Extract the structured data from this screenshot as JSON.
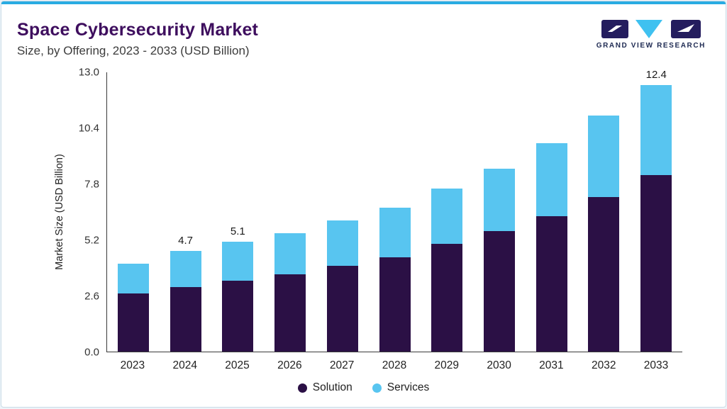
{
  "header": {
    "title": "Space Cybersecurity Market",
    "subtitle": "Size, by Offering, 2023 - 2033 (USD Billion)"
  },
  "logo": {
    "name": "GRAND VIEW RESEARCH"
  },
  "chart_data": {
    "type": "bar",
    "stacked": true,
    "title": "Space Cybersecurity Market Size, by Offering, 2023 - 2033 (USD Billion)",
    "ylabel": "Market Size (USD Billion)",
    "xlabel": "",
    "ylim": [
      0,
      13.0
    ],
    "ytick_labels": [
      "0.0",
      "2.6",
      "5.2",
      "7.8",
      "10.4",
      "13.0"
    ],
    "grid": false,
    "legend_position": "bottom",
    "categories": [
      "2023",
      "2024",
      "2025",
      "2026",
      "2027",
      "2028",
      "2029",
      "2030",
      "2031",
      "2032",
      "2033"
    ],
    "series": [
      {
        "name": "Solution",
        "color": "#2B1045",
        "values": [
          2.7,
          3.0,
          3.3,
          3.6,
          4.0,
          4.4,
          5.0,
          5.6,
          6.3,
          7.2,
          8.2
        ]
      },
      {
        "name": "Services",
        "color": "#58C5F0",
        "values": [
          1.4,
          1.7,
          1.8,
          1.9,
          2.1,
          2.3,
          2.6,
          2.9,
          3.4,
          3.8,
          4.2
        ]
      }
    ],
    "totals": [
      4.1,
      4.7,
      5.1,
      5.5,
      6.1,
      6.7,
      7.6,
      8.5,
      9.7,
      11.0,
      12.4
    ],
    "bar_labels": {
      "2024": "4.7",
      "2025": "5.1",
      "2033": "12.4"
    }
  },
  "colors": {
    "accent_line": "#29ABE2",
    "title": "#3E0E5E",
    "solution": "#2B1045",
    "services": "#58C5F0",
    "logo_navy": "#241D5E",
    "logo_cyan": "#3FC1F0"
  }
}
